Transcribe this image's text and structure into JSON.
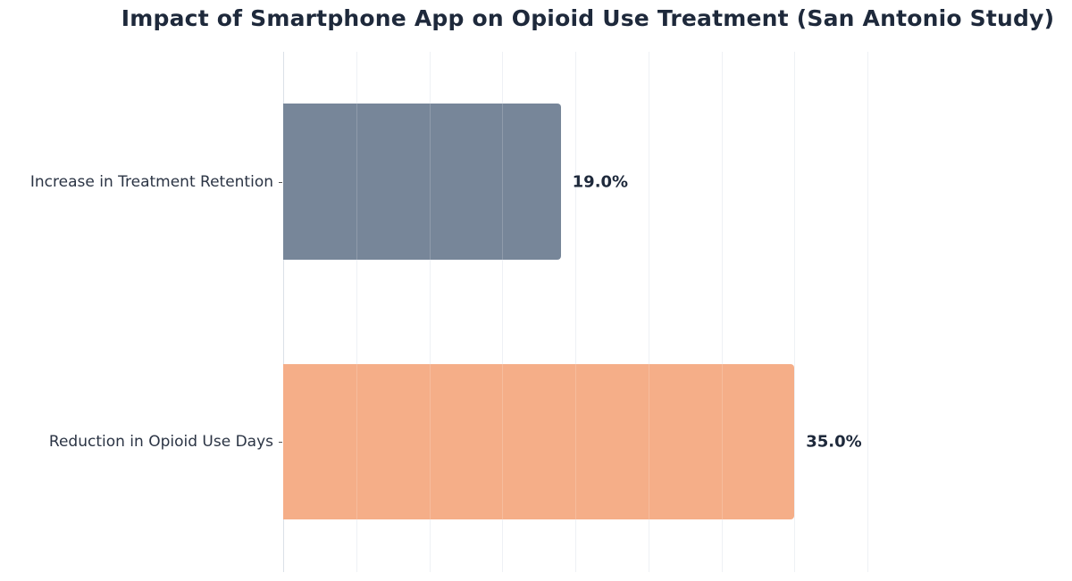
{
  "title": "Impact of Smartphone App on Opioid Use Treatment (San Antonio Study)",
  "chart_data": {
    "type": "bar",
    "orientation": "horizontal",
    "title": "Impact of Smartphone App on Opioid Use Treatment (San Antonio Study)",
    "categories": [
      "Increase in Treatment Retention",
      "Reduction in Opioid Use Days"
    ],
    "values": [
      19.0,
      35.0
    ],
    "value_labels": [
      "19.0%",
      "35.0%"
    ],
    "colors": [
      "#778699",
      "#F5AE88"
    ],
    "xlabel": "",
    "ylabel": "",
    "xlim": [
      0,
      52
    ],
    "x_gridlines": [
      0,
      5,
      10,
      15,
      20,
      25,
      30,
      35,
      40
    ],
    "grid": true,
    "x_tick_labels_visible": false,
    "legend": null
  },
  "bars": [
    {
      "label": "Increase in Treatment Retention",
      "value": 19.0,
      "value_label": "19.0%",
      "color": "#778699"
    },
    {
      "label": "Reduction in Opioid Use Days",
      "value": 35.0,
      "value_label": "35.0%",
      "color": "#F5AE88"
    }
  ]
}
